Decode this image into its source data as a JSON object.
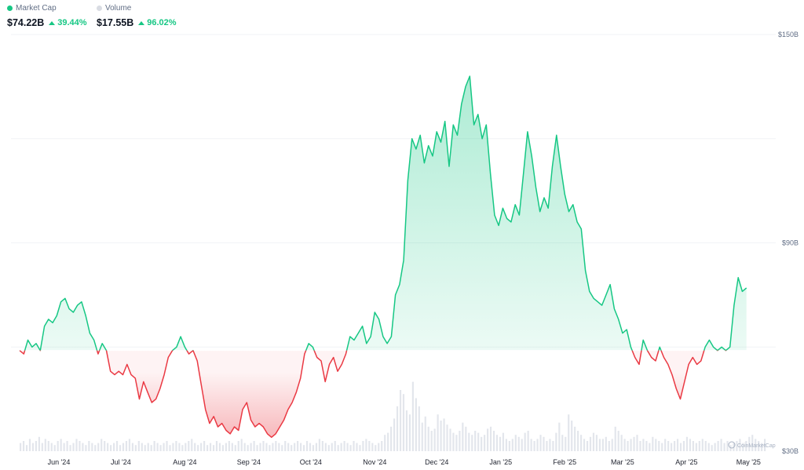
{
  "header": {
    "market_cap": {
      "label": "Market Cap",
      "value": "$74.22B",
      "change": "39.44%",
      "dot_color": "#16c784"
    },
    "volume": {
      "label": "Volume",
      "value": "$17.55B",
      "change": "96.02%",
      "dot_color": "#d9dce3"
    }
  },
  "watermark": "CoinMarketCap",
  "colors": {
    "up": "#16c784",
    "down": "#ea3943",
    "volume": "#e3e6ec",
    "grid": "#f1f3f6"
  },
  "chart_data": {
    "type": "area",
    "title": "",
    "xlabel": "",
    "ylabel": "",
    "baseline": 59,
    "ylim": [
      30,
      150
    ],
    "y_ticks": [
      {
        "value": 150,
        "label": "$150B"
      },
      {
        "value": 90,
        "label": "$90B"
      },
      {
        "value": 30,
        "label": "$30B"
      }
    ],
    "x_ticks": [
      {
        "day": 19,
        "label": "Jun '24"
      },
      {
        "day": 49,
        "label": "Jul '24"
      },
      {
        "day": 80,
        "label": "Aug '24"
      },
      {
        "day": 111,
        "label": "Sep '24"
      },
      {
        "day": 141,
        "label": "Oct '24"
      },
      {
        "day": 172,
        "label": "Nov '24"
      },
      {
        "day": 202,
        "label": "Dec '24"
      },
      {
        "day": 233,
        "label": "Jan '25"
      },
      {
        "day": 264,
        "label": "Feb '25"
      },
      {
        "day": 292,
        "label": "Mar '25"
      },
      {
        "day": 323,
        "label": "Apr '25"
      },
      {
        "day": 353,
        "label": "May '25"
      }
    ],
    "x_domain": [
      0,
      362
    ],
    "series": [
      {
        "points": [
          [
            0,
            59
          ],
          [
            2,
            58
          ],
          [
            4,
            62
          ],
          [
            6,
            60
          ],
          [
            8,
            61
          ],
          [
            10,
            59
          ],
          [
            12,
            66
          ],
          [
            14,
            68
          ],
          [
            16,
            67
          ],
          [
            18,
            69
          ],
          [
            20,
            73
          ],
          [
            22,
            74
          ],
          [
            24,
            71
          ],
          [
            26,
            70
          ],
          [
            28,
            72
          ],
          [
            30,
            73
          ],
          [
            32,
            69
          ],
          [
            34,
            64
          ],
          [
            36,
            62
          ],
          [
            38,
            58
          ],
          [
            40,
            61
          ],
          [
            42,
            59
          ],
          [
            44,
            53
          ],
          [
            46,
            52
          ],
          [
            48,
            53
          ],
          [
            50,
            52
          ],
          [
            52,
            55
          ],
          [
            54,
            52
          ],
          [
            56,
            51
          ],
          [
            58,
            45
          ],
          [
            60,
            50
          ],
          [
            62,
            47
          ],
          [
            64,
            44
          ],
          [
            66,
            45
          ],
          [
            68,
            48
          ],
          [
            70,
            52
          ],
          [
            72,
            57
          ],
          [
            74,
            59
          ],
          [
            76,
            60
          ],
          [
            78,
            63
          ],
          [
            80,
            60
          ],
          [
            82,
            58
          ],
          [
            84,
            59
          ],
          [
            86,
            56
          ],
          [
            88,
            49
          ],
          [
            90,
            42
          ],
          [
            92,
            38
          ],
          [
            94,
            40
          ],
          [
            96,
            37
          ],
          [
            98,
            38
          ],
          [
            100,
            36
          ],
          [
            102,
            35
          ],
          [
            104,
            37
          ],
          [
            106,
            36
          ],
          [
            108,
            42
          ],
          [
            110,
            44
          ],
          [
            112,
            39
          ],
          [
            114,
            37
          ],
          [
            116,
            38
          ],
          [
            118,
            37
          ],
          [
            120,
            35
          ],
          [
            122,
            34
          ],
          [
            124,
            35
          ],
          [
            126,
            37
          ],
          [
            128,
            39
          ],
          [
            130,
            42
          ],
          [
            132,
            44
          ],
          [
            134,
            47
          ],
          [
            136,
            51
          ],
          [
            138,
            58
          ],
          [
            140,
            61
          ],
          [
            142,
            60
          ],
          [
            144,
            57
          ],
          [
            146,
            56
          ],
          [
            148,
            50
          ],
          [
            150,
            55
          ],
          [
            152,
            57
          ],
          [
            154,
            53
          ],
          [
            156,
            55
          ],
          [
            158,
            58
          ],
          [
            160,
            63
          ],
          [
            162,
            62
          ],
          [
            164,
            64
          ],
          [
            166,
            66
          ],
          [
            168,
            61
          ],
          [
            170,
            63
          ],
          [
            172,
            70
          ],
          [
            174,
            68
          ],
          [
            176,
            63
          ],
          [
            178,
            61
          ],
          [
            180,
            63
          ],
          [
            182,
            75
          ],
          [
            184,
            78
          ],
          [
            186,
            85
          ],
          [
            188,
            108
          ],
          [
            190,
            120
          ],
          [
            192,
            117
          ],
          [
            194,
            121
          ],
          [
            196,
            113
          ],
          [
            198,
            118
          ],
          [
            200,
            115
          ],
          [
            202,
            122
          ],
          [
            204,
            119
          ],
          [
            206,
            125
          ],
          [
            208,
            112
          ],
          [
            210,
            124
          ],
          [
            212,
            121
          ],
          [
            214,
            130
          ],
          [
            216,
            135
          ],
          [
            218,
            138
          ],
          [
            220,
            124
          ],
          [
            222,
            127
          ],
          [
            224,
            120
          ],
          [
            226,
            124
          ],
          [
            228,
            110
          ],
          [
            230,
            98
          ],
          [
            232,
            95
          ],
          [
            234,
            100
          ],
          [
            236,
            97
          ],
          [
            238,
            96
          ],
          [
            240,
            101
          ],
          [
            242,
            98
          ],
          [
            244,
            110
          ],
          [
            246,
            122
          ],
          [
            248,
            115
          ],
          [
            250,
            106
          ],
          [
            252,
            99
          ],
          [
            254,
            103
          ],
          [
            256,
            100
          ],
          [
            258,
            112
          ],
          [
            260,
            121
          ],
          [
            262,
            112
          ],
          [
            264,
            104
          ],
          [
            266,
            99
          ],
          [
            268,
            101
          ],
          [
            270,
            96
          ],
          [
            272,
            94
          ],
          [
            274,
            82
          ],
          [
            276,
            76
          ],
          [
            278,
            74
          ],
          [
            280,
            73
          ],
          [
            282,
            72
          ],
          [
            284,
            75
          ],
          [
            286,
            78
          ],
          [
            288,
            71
          ],
          [
            290,
            68
          ],
          [
            292,
            64
          ],
          [
            294,
            65
          ],
          [
            296,
            60
          ],
          [
            298,
            57
          ],
          [
            300,
            55
          ],
          [
            302,
            62
          ],
          [
            304,
            59
          ],
          [
            306,
            57
          ],
          [
            308,
            56
          ],
          [
            310,
            60
          ],
          [
            312,
            57
          ],
          [
            314,
            55
          ],
          [
            316,
            52
          ],
          [
            318,
            48
          ],
          [
            320,
            45
          ],
          [
            322,
            50
          ],
          [
            324,
            55
          ],
          [
            326,
            57
          ],
          [
            328,
            55
          ],
          [
            330,
            56
          ],
          [
            332,
            60
          ],
          [
            334,
            62
          ],
          [
            336,
            60
          ],
          [
            338,
            59
          ],
          [
            340,
            60
          ],
          [
            342,
            59
          ],
          [
            344,
            60
          ],
          [
            346,
            72
          ],
          [
            348,
            80
          ],
          [
            350,
            76
          ],
          [
            352,
            77
          ]
        ]
      }
    ],
    "volume": {
      "values": [
        4,
        5,
        3,
        6,
        4,
        5,
        7,
        4,
        6,
        5,
        4,
        3,
        5,
        6,
        4,
        5,
        3,
        4,
        6,
        5,
        4,
        3,
        5,
        4,
        3,
        4,
        6,
        5,
        4,
        3,
        4,
        5,
        3,
        4,
        5,
        6,
        4,
        3,
        5,
        4,
        3,
        4,
        3,
        5,
        4,
        3,
        4,
        5,
        3,
        4,
        5,
        4,
        3,
        4,
        5,
        6,
        4,
        3,
        4,
        5,
        3,
        4,
        3,
        5,
        4,
        3,
        4,
        5,
        4,
        3,
        5,
        6,
        4,
        3,
        4,
        5,
        3,
        4,
        5,
        4,
        3,
        4,
        5,
        4,
        3,
        5,
        4,
        3,
        4,
        5,
        4,
        3,
        5,
        4,
        3,
        4,
        6,
        5,
        4,
        3,
        4,
        5,
        3,
        4,
        5,
        4,
        3,
        5,
        4,
        3,
        5,
        6,
        5,
        4,
        3,
        4,
        5,
        8,
        9,
        12,
        16,
        22,
        30,
        28,
        20,
        18,
        34,
        26,
        22,
        14,
        17,
        12,
        10,
        11,
        18,
        15,
        16,
        13,
        11,
        9,
        8,
        10,
        14,
        12,
        9,
        8,
        10,
        9,
        7,
        8,
        11,
        12,
        10,
        8,
        7,
        9,
        6,
        5,
        6,
        8,
        7,
        6,
        9,
        10,
        6,
        5,
        6,
        8,
        7,
        5,
        6,
        5,
        9,
        14,
        8,
        7,
        18,
        15,
        12,
        10,
        8,
        6,
        5,
        7,
        9,
        8,
        6,
        6,
        7,
        5,
        6,
        12,
        10,
        8,
        6,
        5,
        6,
        7,
        8,
        5,
        6,
        5,
        4,
        7,
        6,
        5,
        4,
        6,
        5,
        4,
        5,
        6,
        4,
        5,
        7,
        6,
        5,
        4,
        5,
        6,
        5,
        4,
        3,
        4,
        5,
        6,
        4,
        5,
        3,
        4,
        5,
        6,
        4,
        5,
        7,
        8,
        6,
        5,
        4,
        6
      ],
      "max": 50
    }
  }
}
